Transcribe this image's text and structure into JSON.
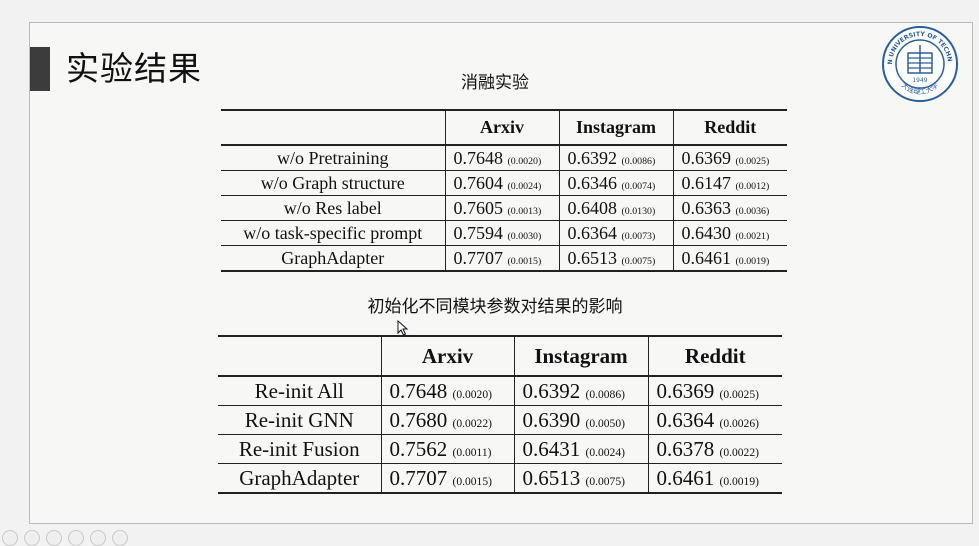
{
  "slide": {
    "title": "实验结果",
    "logo_text": "DALIAN UNIVERSITY OF TECHNOLOGY",
    "logo_year": "1949",
    "logo_cn": "大连理工大学"
  },
  "ablation": {
    "caption": "消融实验",
    "headers": [
      "Arxiv",
      "Instagram",
      "Reddit"
    ],
    "rows": [
      {
        "label": "w/o Pretraining",
        "cells": [
          [
            "0.7648",
            "(0.0020)"
          ],
          [
            "0.6392",
            "(0.0086)"
          ],
          [
            "0.6369",
            "(0.0025)"
          ]
        ]
      },
      {
        "label": "w/o Graph structure",
        "cells": [
          [
            "0.7604",
            "(0.0024)"
          ],
          [
            "0.6346",
            "(0.0074)"
          ],
          [
            "0.6147",
            "(0.0012)"
          ]
        ]
      },
      {
        "label": "w/o Res label",
        "cells": [
          [
            "0.7605",
            "(0.0013)"
          ],
          [
            "0.6408",
            "(0.0130)"
          ],
          [
            "0.6363",
            "(0.0036)"
          ]
        ]
      },
      {
        "label": "w/o task-specific prompt",
        "cells": [
          [
            "0.7594",
            "(0.0030)"
          ],
          [
            "0.6364",
            "(0.0073)"
          ],
          [
            "0.6430",
            "(0.0021)"
          ]
        ]
      },
      {
        "label": "GraphAdapter",
        "cells": [
          [
            "0.7707",
            "(0.0015)"
          ],
          [
            "0.6513",
            "(0.0075)"
          ],
          [
            "0.6461",
            "(0.0019)"
          ]
        ]
      }
    ]
  },
  "reinit": {
    "caption": "初始化不同模块参数对结果的影响",
    "headers": [
      "Arxiv",
      "Instagram",
      "Reddit"
    ],
    "rows": [
      {
        "label": "Re-init All",
        "cells": [
          [
            "0.7648",
            "(0.0020)"
          ],
          [
            "0.6392",
            "(0.0086)"
          ],
          [
            "0.6369",
            "(0.0025)"
          ]
        ]
      },
      {
        "label": "Re-init GNN",
        "cells": [
          [
            "0.7680",
            "(0.0022)"
          ],
          [
            "0.6390",
            "(0.0050)"
          ],
          [
            "0.6364",
            "(0.0026)"
          ]
        ]
      },
      {
        "label": "Re-init Fusion",
        "cells": [
          [
            "0.7562",
            "(0.0011)"
          ],
          [
            "0.6431",
            "(0.0024)"
          ],
          [
            "0.6378",
            "(0.0022)"
          ]
        ]
      },
      {
        "label": "GraphAdapter",
        "cells": [
          [
            "0.7707",
            "(0.0015)"
          ],
          [
            "0.6513",
            "(0.0075)"
          ],
          [
            "0.6461",
            "(0.0019)"
          ]
        ]
      }
    ]
  }
}
